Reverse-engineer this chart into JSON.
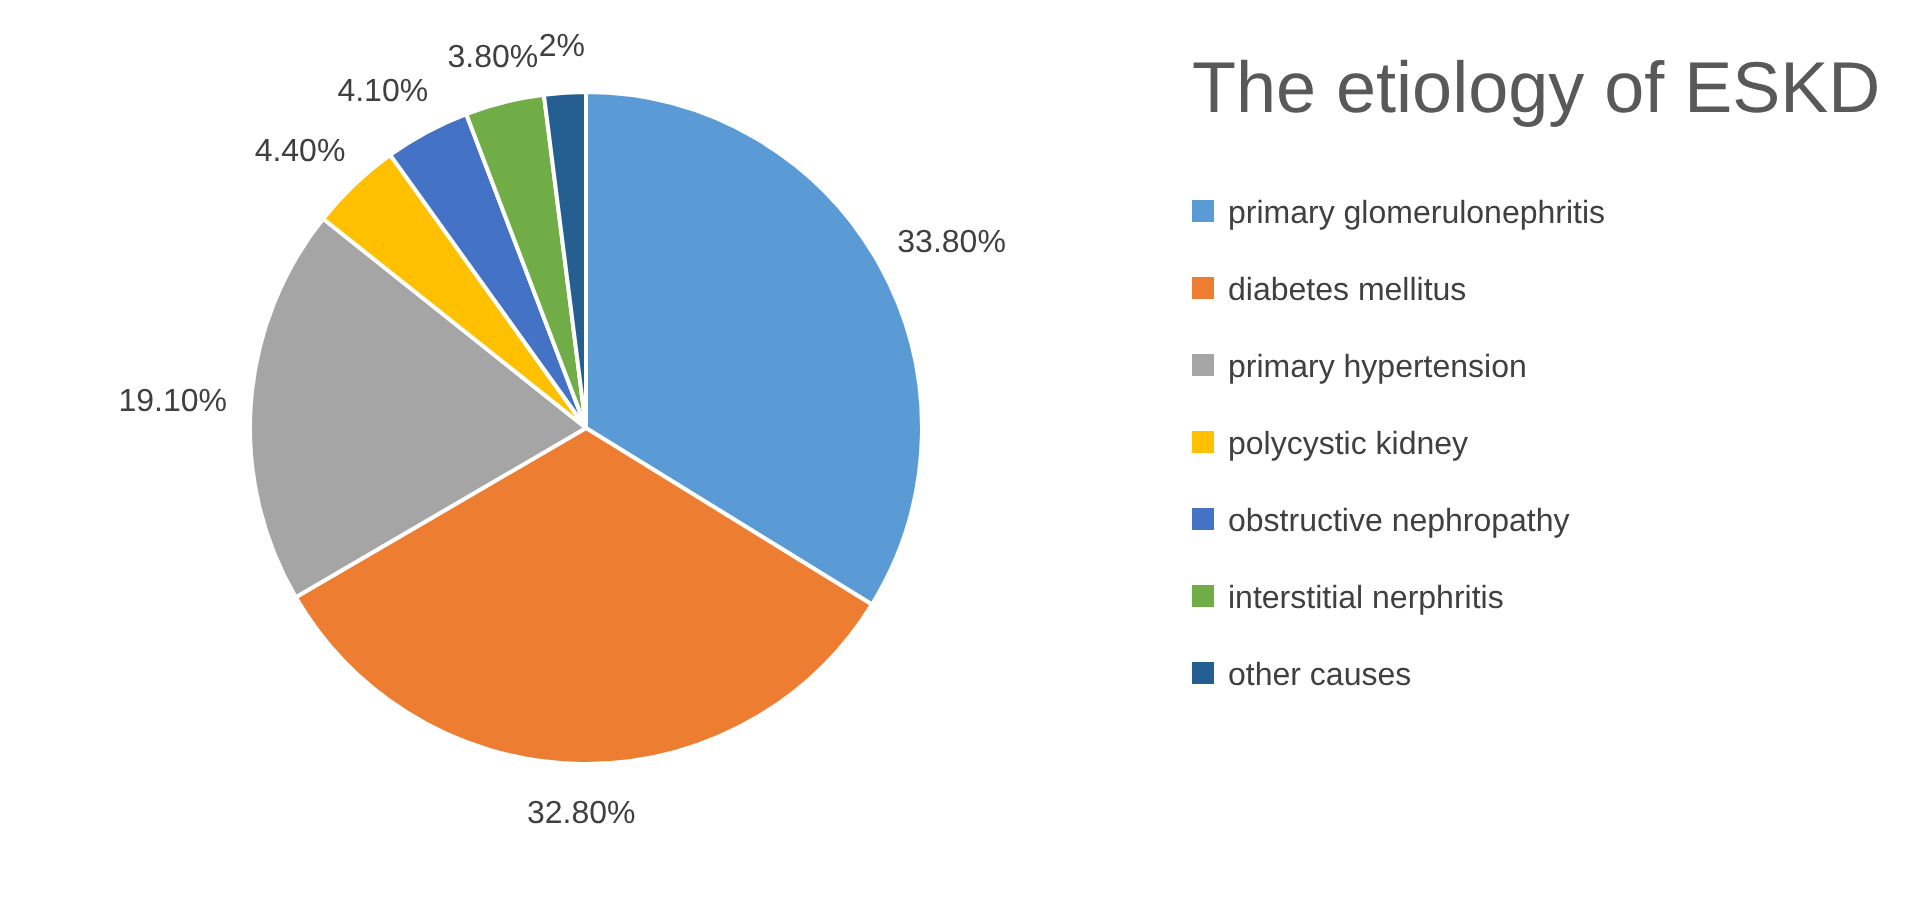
{
  "chart_data": {
    "type": "pie",
    "title": "The etiology of ESKD",
    "categories": [
      "primary glomerulonephritis",
      "diabetes mellitus",
      "primary hypertension",
      "polycystic kidney",
      "obstructive nephropathy",
      "interstitial nerphritis",
      "other causes"
    ],
    "values": [
      33.8,
      32.8,
      19.1,
      4.4,
      4.1,
      3.8,
      2
    ],
    "value_labels": [
      "33.80%",
      "32.80%",
      "19.10%",
      "4.40%",
      "4.10%",
      "3.80%",
      "2%"
    ],
    "colors": [
      "#5b9bd5",
      "#ed7d31",
      "#a5a5a5",
      "#ffc000",
      "#4472c4",
      "#70ad47",
      "#255e91"
    ],
    "legend": "right"
  }
}
